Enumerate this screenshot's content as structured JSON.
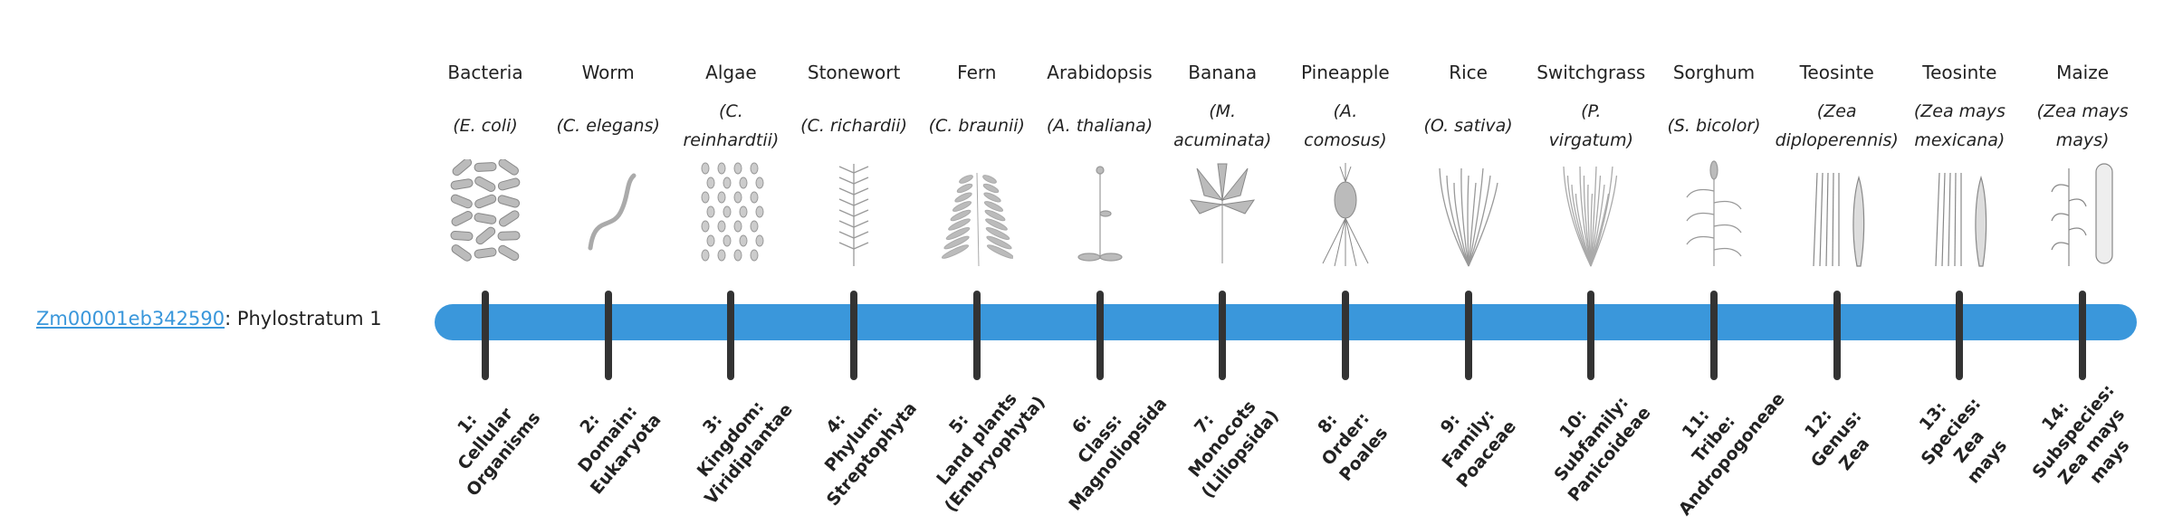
{
  "gene": {
    "id": "Zm00001eb342590",
    "suffix": ": Phylostratum 1"
  },
  "colors": {
    "bar": "#3a97db",
    "tick": "#333333",
    "link": "#3a97db"
  },
  "strata": [
    {
      "common": "Bacteria",
      "sci": [
        "(E. coli)"
      ],
      "icon": "bacteria-icon",
      "label": [
        "1:",
        "Cellular",
        "Organisms"
      ]
    },
    {
      "common": "Worm",
      "sci": [
        "(C. elegans)"
      ],
      "icon": "worm-icon",
      "label": [
        "2:",
        "Domain:",
        "Eukaryota"
      ]
    },
    {
      "common": "Algae",
      "sci": [
        "(C.",
        "reinhardtii)"
      ],
      "icon": "algae-icon",
      "label": [
        "3:",
        "Kingdom:",
        "Viridiplantae"
      ]
    },
    {
      "common": "Stonewort",
      "sci": [
        "(C. richardii)"
      ],
      "icon": "stonewort-icon",
      "label": [
        "4:",
        "Phylum:",
        "Streptophyta"
      ]
    },
    {
      "common": "Fern",
      "sci": [
        "(C. braunii)"
      ],
      "icon": "fern-icon",
      "label": [
        "5:",
        "Land plants",
        "(Embryophyta)"
      ]
    },
    {
      "common": "Arabidopsis",
      "sci": [
        "(A. thaliana)"
      ],
      "icon": "arabidopsis-icon",
      "label": [
        "6:",
        "Class:",
        "Magnoliopsida"
      ]
    },
    {
      "common": "Banana",
      "sci": [
        "(M.",
        "acuminata)"
      ],
      "icon": "banana-icon",
      "label": [
        "7:",
        "Monocots",
        "(Liliopsida)"
      ]
    },
    {
      "common": "Pineapple",
      "sci": [
        "(A.",
        "comosus)"
      ],
      "icon": "pineapple-icon",
      "label": [
        "8:",
        "Order:",
        "Poales"
      ]
    },
    {
      "common": "Rice",
      "sci": [
        "(O. sativa)"
      ],
      "icon": "rice-icon",
      "label": [
        "9:",
        "Family:",
        "Poaceae"
      ]
    },
    {
      "common": "Switchgrass",
      "sci": [
        "(P.",
        "virgatum)"
      ],
      "icon": "switchgrass-icon",
      "label": [
        "10:",
        "Subfamily:",
        "Panicoideae"
      ]
    },
    {
      "common": "Sorghum",
      "sci": [
        "(S. bicolor)"
      ],
      "icon": "sorghum-icon",
      "label": [
        "11:",
        "Tribe:",
        "Andropogoneae"
      ]
    },
    {
      "common": "Teosinte",
      "sci": [
        "(Zea",
        "diploperennis)"
      ],
      "icon": "teosinte-icon",
      "label": [
        "12:",
        "Genus:",
        "Zea"
      ]
    },
    {
      "common": "Teosinte",
      "sci": [
        "(Zea mays",
        "mexicana)"
      ],
      "icon": "teosinte-icon",
      "label": [
        "13:",
        "Species:",
        "Zea",
        "mays"
      ]
    },
    {
      "common": "Maize",
      "sci": [
        "(Zea mays",
        "mays)"
      ],
      "icon": "maize-icon",
      "label": [
        "14:",
        "Subspecies:",
        "Zea mays",
        "mays"
      ]
    }
  ]
}
